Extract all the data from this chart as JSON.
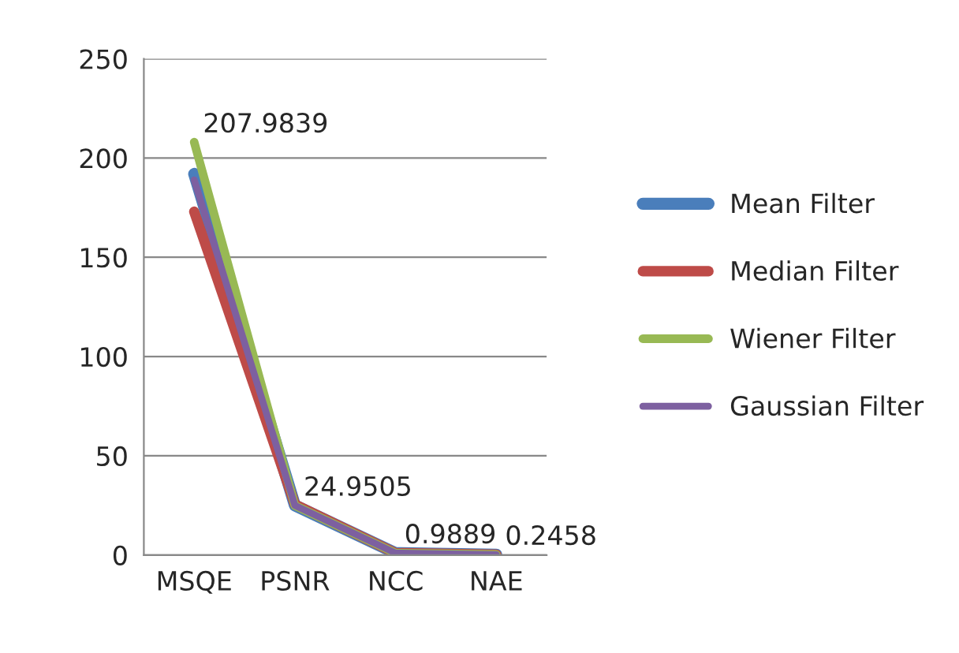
{
  "chart_data": {
    "type": "line",
    "categories": [
      "MSQE",
      "PSNR",
      "NCC",
      "NAE"
    ],
    "series": [
      {
        "name": "Mean Filter",
        "color": "#4a7ebb",
        "values": [
          192,
          25,
          1,
          0.2
        ]
      },
      {
        "name": "Median Filter",
        "color": "#be4b48",
        "values": [
          173,
          25.5,
          1,
          0.2
        ]
      },
      {
        "name": "Wiener Filter",
        "color": "#98b954",
        "values": [
          207.9839,
          24.9505,
          0.9889,
          0.2458
        ],
        "value_labels": [
          "207.9839",
          "24.9505",
          "0.9889",
          "0.2458"
        ]
      },
      {
        "name": "Gaussian Filter",
        "color": "#7d60a0",
        "values": [
          189,
          25,
          1,
          0.2
        ]
      }
    ],
    "ylim": [
      0,
      250
    ],
    "yticks": [
      0,
      50,
      100,
      150,
      200,
      250
    ],
    "grid": "y",
    "legend": "right",
    "marker": "none",
    "line_style": "solid"
  }
}
